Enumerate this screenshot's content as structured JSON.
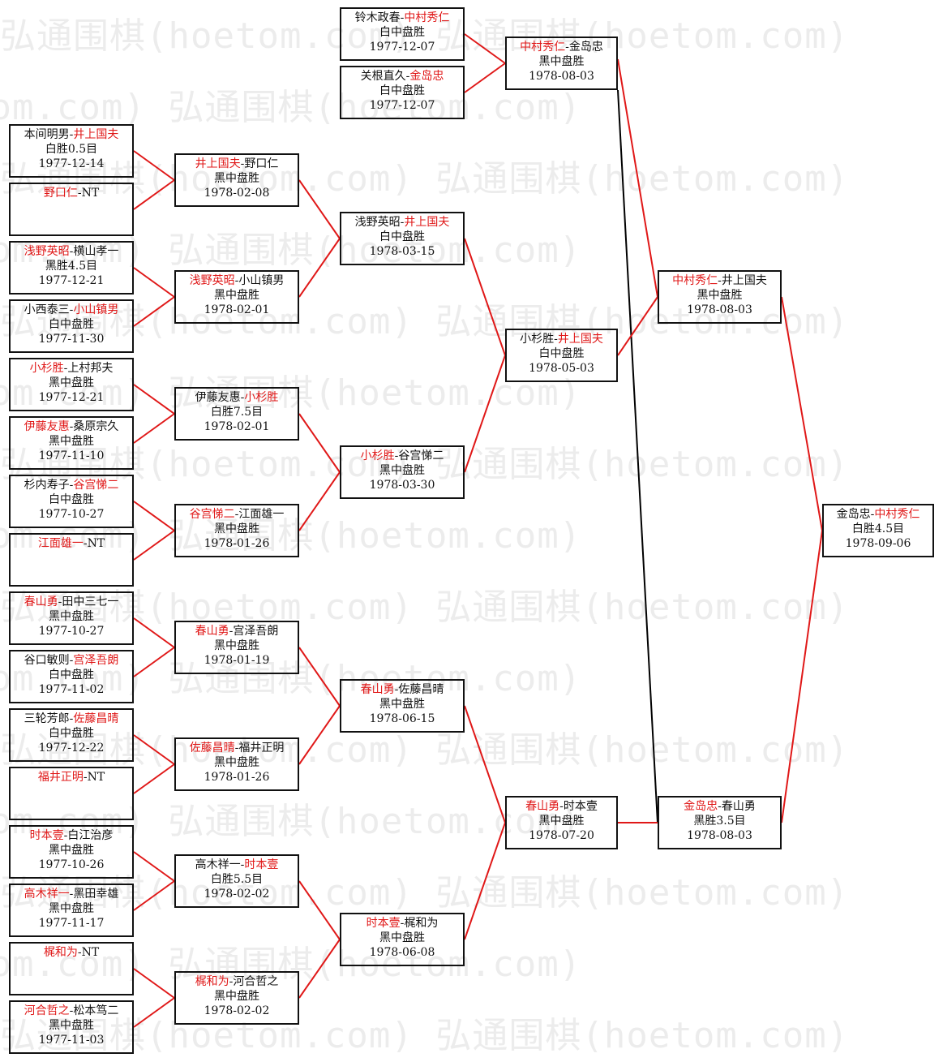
{
  "watermark": "弘通围棋(hoetom.com)",
  "colors": {
    "winner": "#e01818",
    "line": "#e01818",
    "alt_line": "#000000",
    "border": "#111111"
  },
  "matches": [
    {
      "id": "r1-0",
      "p1": "本间明男",
      "p2": "井上国夫",
      "winner": 2,
      "result": "白胜0.5目",
      "date": "1977-12-14"
    },
    {
      "id": "r1-1",
      "p1": "野口仁",
      "p2": "NT",
      "winner": 1,
      "result": "",
      "date": ""
    },
    {
      "id": "r1-2",
      "p1": "浅野英昭",
      "p2": "横山孝一",
      "winner": 1,
      "result": "黑胜4.5目",
      "date": "1977-12-21"
    },
    {
      "id": "r1-3",
      "p1": "小西泰三",
      "p2": "小山镇男",
      "winner": 2,
      "result": "白中盘胜",
      "date": "1977-11-30"
    },
    {
      "id": "r1-4",
      "p1": "小杉胜",
      "p2": "上村邦夫",
      "winner": 1,
      "result": "黑中盘胜",
      "date": "1977-12-21"
    },
    {
      "id": "r1-5",
      "p1": "伊藤友惠",
      "p2": "桑原宗久",
      "winner": 1,
      "result": "黑中盘胜",
      "date": "1977-11-10"
    },
    {
      "id": "r1-6",
      "p1": "杉内寿子",
      "p2": "谷宫悌二",
      "winner": 2,
      "result": "白中盘胜",
      "date": "1977-10-27"
    },
    {
      "id": "r1-7",
      "p1": "江面雄一",
      "p2": "NT",
      "winner": 1,
      "result": "",
      "date": ""
    },
    {
      "id": "r1-8",
      "p1": "春山勇",
      "p2": "田中三七一",
      "winner": 1,
      "result": "黑中盘胜",
      "date": "1977-10-27"
    },
    {
      "id": "r1-9",
      "p1": "谷口敏则",
      "p2": "宫泽吾朗",
      "winner": 2,
      "result": "白中盘胜",
      "date": "1977-11-02"
    },
    {
      "id": "r1-10",
      "p1": "三轮芳郎",
      "p2": "佐藤昌晴",
      "winner": 2,
      "result": "白中盘胜",
      "date": "1977-12-22"
    },
    {
      "id": "r1-11",
      "p1": "福井正明",
      "p2": "NT",
      "winner": 1,
      "result": "",
      "date": ""
    },
    {
      "id": "r1-12",
      "p1": "时本壹",
      "p2": "白江治彦",
      "winner": 1,
      "result": "黑中盘胜",
      "date": "1977-10-26"
    },
    {
      "id": "r1-13",
      "p1": "高木祥一",
      "p2": "黑田幸雄",
      "winner": 1,
      "result": "黑中盘胜",
      "date": "1977-11-17"
    },
    {
      "id": "r1-14",
      "p1": "梶和为",
      "p2": "NT",
      "winner": 1,
      "result": "",
      "date": ""
    },
    {
      "id": "r1-15",
      "p1": "河合哲之",
      "p2": "松本笃二",
      "winner": 1,
      "result": "黑中盘胜",
      "date": "1977-11-03"
    },
    {
      "id": "r2-0",
      "p1": "井上国夫",
      "p2": "野口仁",
      "winner": 1,
      "result": "黑中盘胜",
      "date": "1978-02-08"
    },
    {
      "id": "r2-1",
      "p1": "浅野英昭",
      "p2": "小山镇男",
      "winner": 1,
      "result": "黑中盘胜",
      "date": "1978-02-01"
    },
    {
      "id": "r2-2",
      "p1": "伊藤友惠",
      "p2": "小杉胜",
      "winner": 2,
      "result": "白胜7.5目",
      "date": "1978-02-01"
    },
    {
      "id": "r2-3",
      "p1": "谷宫悌二",
      "p2": "江面雄一",
      "winner": 1,
      "result": "黑中盘胜",
      "date": "1978-01-26"
    },
    {
      "id": "r2-4",
      "p1": "春山勇",
      "p2": "宫泽吾朗",
      "winner": 1,
      "result": "黑中盘胜",
      "date": "1978-01-19"
    },
    {
      "id": "r2-5",
      "p1": "佐藤昌晴",
      "p2": "福井正明",
      "winner": 1,
      "result": "黑中盘胜",
      "date": "1978-01-26"
    },
    {
      "id": "r2-6",
      "p1": "高木祥一",
      "p2": "时本壹",
      "winner": 2,
      "result": "白胜5.5目",
      "date": "1978-02-02"
    },
    {
      "id": "r2-7",
      "p1": "梶和为",
      "p2": "河合哲之",
      "winner": 1,
      "result": "黑中盘胜",
      "date": "1978-02-02"
    },
    {
      "id": "r3-0",
      "p1": "浅野英昭",
      "p2": "井上国夫",
      "winner": 2,
      "result": "白中盘胜",
      "date": "1978-03-15"
    },
    {
      "id": "r3-1",
      "p1": "小杉胜",
      "p2": "谷宫悌二",
      "winner": 1,
      "result": "黑中盘胜",
      "date": "1978-03-30"
    },
    {
      "id": "r3-2",
      "p1": "春山勇",
      "p2": "佐藤昌晴",
      "winner": 1,
      "result": "黑中盘胜",
      "date": "1978-06-15"
    },
    {
      "id": "r3-3",
      "p1": "时本壹",
      "p2": "梶和为",
      "winner": 1,
      "result": "黑中盘胜",
      "date": "1978-06-08"
    },
    {
      "id": "top-0",
      "p1": "铃木政春",
      "p2": "中村秀仁",
      "winner": 2,
      "result": "白中盘胜",
      "date": "1977-12-07"
    },
    {
      "id": "top-1",
      "p1": "关根直久",
      "p2": "金岛忠",
      "winner": 2,
      "result": "白中盘胜",
      "date": "1977-12-07"
    },
    {
      "id": "r4-0",
      "p1": "中村秀仁",
      "p2": "金岛忠",
      "winner": 1,
      "result": "黑中盘胜",
      "date": "1978-08-03"
    },
    {
      "id": "r4-1",
      "p1": "小杉胜",
      "p2": "井上国夫",
      "winner": 2,
      "result": "白中盘胜",
      "date": "1978-05-03"
    },
    {
      "id": "r4-2",
      "p1": "春山勇",
      "p2": "时本壹",
      "winner": 1,
      "result": "黑中盘胜",
      "date": "1978-07-20"
    },
    {
      "id": "r5-0",
      "p1": "中村秀仁",
      "p2": "井上国夫",
      "winner": 1,
      "result": "黑中盘胜",
      "date": "1978-08-03"
    },
    {
      "id": "r5-1",
      "p1": "金岛忠",
      "p2": "春山勇",
      "winner": 1,
      "result": "黑胜3.5目",
      "date": "1978-08-03"
    },
    {
      "id": "final",
      "p1": "金岛忠",
      "p2": "中村秀仁",
      "winner": 2,
      "result": "白胜4.5目",
      "date": "1978-09-06"
    }
  ]
}
